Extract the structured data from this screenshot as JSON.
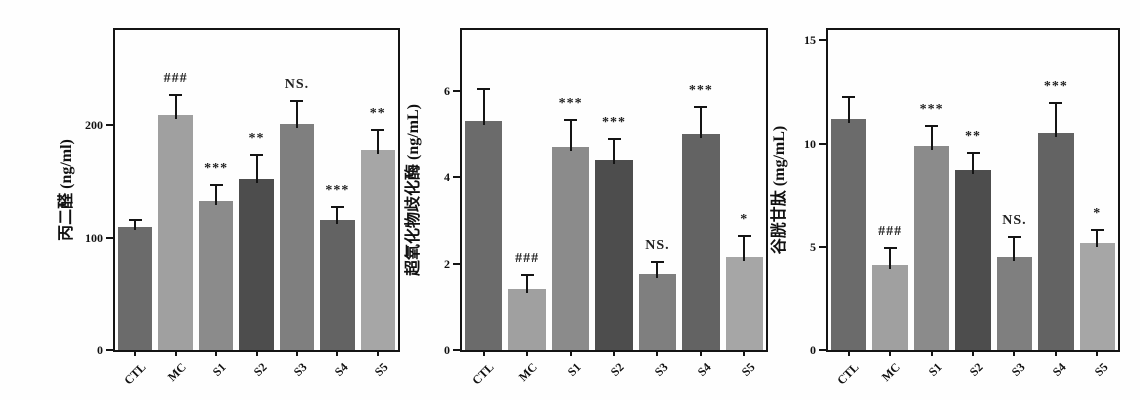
{
  "figure": {
    "background": "#fefefe",
    "axis_color": "#141414",
    "text_color": "#111111"
  },
  "categories": [
    "CTL",
    "MC",
    "S1",
    "S2",
    "S3",
    "S4",
    "S5"
  ],
  "bar_colors": [
    "#6b6b6b",
    "#a0a0a0",
    "#8b8b8b",
    "#4d4d4d",
    "#7f7f7f",
    "#636363",
    "#a6a6a6"
  ],
  "chart_data": [
    {
      "type": "bar",
      "title": "",
      "ylabel": "丙二醛 (ng/ml)",
      "xlabel": "",
      "categories": [
        "CTL",
        "MC",
        "S1",
        "S2",
        "S3",
        "S4",
        "S5"
      ],
      "values": [
        110,
        209,
        133,
        152,
        201,
        116,
        178
      ],
      "errors": [
        7,
        19,
        15,
        23,
        22,
        12,
        19
      ],
      "annotations": [
        "",
        "###",
        "***",
        "**",
        "NS.",
        "***",
        "**"
      ],
      "yticks": [
        0,
        100,
        200
      ],
      "ylim": [
        0,
        285
      ],
      "grid": false,
      "legend": null
    },
    {
      "type": "bar",
      "title": "",
      "ylabel": "超氧化物歧化酶 (ng/mL)",
      "xlabel": "",
      "categories": [
        "CTL",
        "MC",
        "S1",
        "S2",
        "S3",
        "S4",
        "S5"
      ],
      "values": [
        5.3,
        1.4,
        4.7,
        4.4,
        1.75,
        5.0,
        2.15
      ],
      "errors": [
        0.75,
        0.35,
        0.65,
        0.5,
        0.3,
        0.65,
        0.5
      ],
      "annotations": [
        "",
        "###",
        "***",
        "***",
        "NS.",
        "***",
        "*"
      ],
      "yticks": [
        0,
        2,
        4,
        6
      ],
      "ylim": [
        0,
        7.4
      ],
      "grid": false,
      "legend": null
    },
    {
      "type": "bar",
      "title": "",
      "ylabel": "谷胱甘肽 (mg/mL)",
      "xlabel": "",
      "categories": [
        "CTL",
        "MC",
        "S1",
        "S2",
        "S3",
        "S4",
        "S5"
      ],
      "values": [
        11.2,
        4.1,
        9.9,
        8.7,
        4.5,
        10.5,
        5.2
      ],
      "errors": [
        1.1,
        0.9,
        1.0,
        0.9,
        1.0,
        1.5,
        0.65
      ],
      "annotations": [
        "",
        "###",
        "***",
        "**",
        "NS.",
        "***",
        "*"
      ],
      "yticks": [
        0,
        5,
        10,
        15
      ],
      "ylim": [
        0,
        15.5
      ],
      "grid": false,
      "legend": null
    }
  ]
}
